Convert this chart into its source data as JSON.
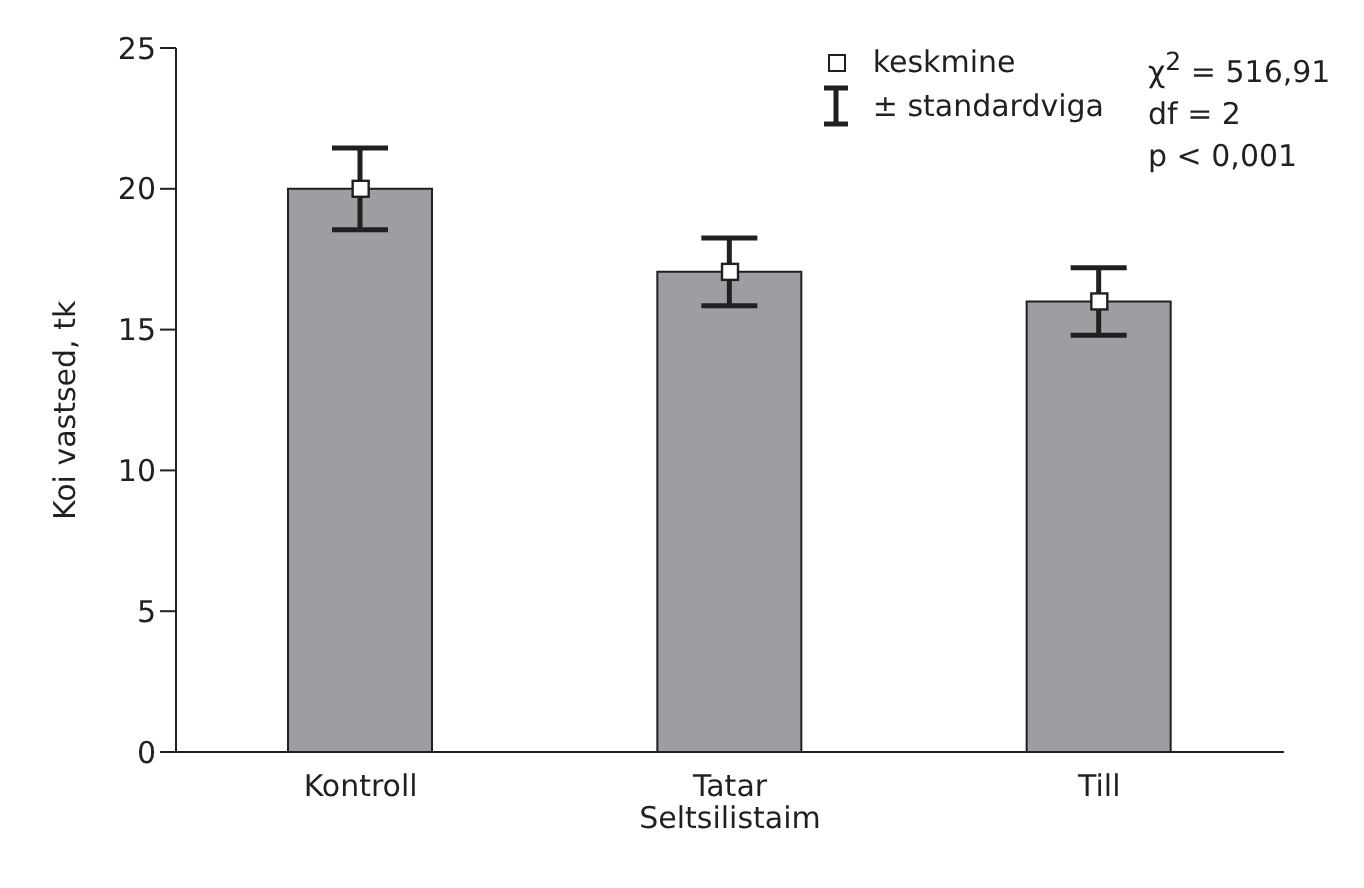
{
  "chart_data": {
    "type": "bar",
    "ylabel": "Koi vastsed, tk",
    "categories": [
      "Kontroll",
      "Tatar\nSeltsilistaim",
      "Till"
    ],
    "series": [
      {
        "color": "#9c9ea1",
        "values": [
          20,
          17.05,
          16
        ],
        "errors": [
          1.45,
          1.2,
          1.2
        ]
      },
      {
        "type": "scatter",
        "name": "keskmine",
        "color": "#ffffff",
        "marker": "square",
        "x": [
          "Kontroll",
          "Tatar\nSeltsilistaim",
          "Till"
        ],
        "values": [
          20,
          17.05,
          16
        ]
      }
    ],
    "ylim": [
      0,
      25
    ],
    "yticks": [
      0,
      5,
      10,
      15,
      20,
      25
    ],
    "grid": false,
    "legend": "top right",
    "annotations": [
      "± standardviga",
      "χ$^{2}$ = 516,91",
      "df = 2",
      "p < 0,001"
    ]
  }
}
